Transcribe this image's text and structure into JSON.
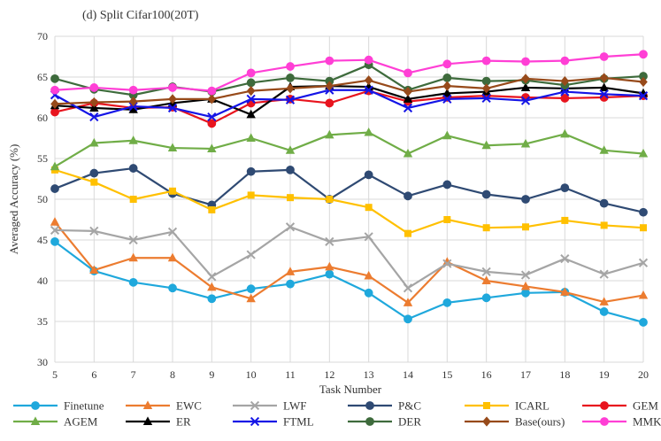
{
  "chart_data": {
    "type": "line",
    "title": "(d)  Split Cifar100(20T)",
    "xlabel": "Task Number",
    "ylabel": "Averaged Accuracy (%)",
    "x": [
      5,
      6,
      7,
      8,
      9,
      10,
      11,
      12,
      13,
      14,
      15,
      16,
      17,
      18,
      19,
      20
    ],
    "ylim": [
      30,
      70
    ],
    "yticks": [
      30,
      35,
      40,
      45,
      50,
      55,
      60,
      65,
      70
    ],
    "grid": true,
    "legend_position": "bottom",
    "series": [
      {
        "name": "Finetune",
        "color": "#1fa8dc",
        "marker": "circle",
        "values": [
          44.8,
          41.2,
          39.8,
          39.1,
          37.8,
          39.0,
          39.6,
          40.8,
          38.5,
          35.3,
          37.3,
          37.9,
          38.5,
          38.6,
          36.2,
          34.9
        ]
      },
      {
        "name": "EWC",
        "color": "#ec7c30",
        "marker": "triangle",
        "values": [
          47.2,
          41.3,
          42.8,
          42.8,
          39.2,
          37.8,
          41.1,
          41.7,
          40.6,
          37.3,
          42.3,
          40.0,
          39.3,
          38.6,
          37.4,
          38.2
        ]
      },
      {
        "name": "LWF",
        "color": "#a5a5a5",
        "marker": "x",
        "values": [
          46.2,
          46.1,
          45.0,
          46.0,
          40.5,
          43.2,
          46.6,
          44.8,
          45.4,
          39.1,
          42.1,
          41.1,
          40.7,
          42.7,
          40.8,
          42.2
        ]
      },
      {
        "name": "P&C",
        "color": "#2f4a73",
        "marker": "circle",
        "values": [
          51.3,
          53.2,
          53.8,
          50.7,
          49.3,
          53.4,
          53.6,
          50.0,
          53.0,
          50.4,
          51.8,
          50.6,
          50.0,
          51.4,
          49.5,
          48.4
        ]
      },
      {
        "name": "ICARL",
        "color": "#ffc000",
        "marker": "square",
        "values": [
          53.6,
          52.1,
          50.0,
          51.0,
          48.7,
          50.5,
          50.2,
          50.0,
          49.0,
          45.8,
          47.5,
          46.5,
          46.6,
          47.4,
          46.8,
          46.5
        ]
      },
      {
        "name": "GEM",
        "color": "#e8141e",
        "marker": "circle",
        "values": [
          60.7,
          61.8,
          61.2,
          61.3,
          59.3,
          61.8,
          62.3,
          61.8,
          63.3,
          62.0,
          62.5,
          62.7,
          62.5,
          62.4,
          62.5,
          62.7
        ]
      },
      {
        "name": "AGEM",
        "color": "#70ad47",
        "marker": "triangle",
        "values": [
          54.0,
          56.9,
          57.2,
          56.3,
          56.2,
          57.5,
          56.0,
          57.9,
          58.2,
          55.6,
          57.8,
          56.6,
          56.8,
          58.0,
          56.0,
          55.6
        ]
      },
      {
        "name": "ER",
        "color": "#000000",
        "marker": "triangle",
        "values": [
          61.5,
          61.2,
          61.0,
          61.8,
          62.3,
          60.4,
          63.8,
          63.9,
          63.8,
          62.3,
          63.0,
          63.2,
          63.7,
          63.6,
          63.7,
          63.0
        ]
      },
      {
        "name": "FTML",
        "color": "#1414e6",
        "marker": "x",
        "values": [
          62.8,
          60.1,
          61.4,
          61.2,
          60.1,
          62.3,
          62.2,
          63.4,
          63.4,
          61.2,
          62.3,
          62.4,
          62.1,
          63.2,
          62.9,
          62.7
        ]
      },
      {
        "name": "DER",
        "color": "#3e6b3c",
        "marker": "circle",
        "values": [
          64.8,
          63.5,
          62.8,
          63.8,
          63.2,
          64.3,
          64.9,
          64.5,
          66.5,
          63.4,
          64.9,
          64.5,
          64.6,
          64.0,
          64.8,
          65.1
        ]
      },
      {
        "name": "Base(ours)",
        "color": "#974a1a",
        "marker": "diamond",
        "values": [
          61.7,
          61.9,
          62.0,
          62.3,
          62.3,
          63.3,
          63.6,
          63.9,
          64.6,
          63.2,
          63.9,
          63.6,
          64.8,
          64.5,
          64.9,
          64.4
        ]
      },
      {
        "name": "MMKDDA",
        "color": "#ff3fd5",
        "marker": "circle",
        "values": [
          63.4,
          63.7,
          63.4,
          63.7,
          63.3,
          65.5,
          66.3,
          67.0,
          67.1,
          65.5,
          66.6,
          67.0,
          66.9,
          67.0,
          67.5,
          67.8
        ]
      }
    ]
  }
}
